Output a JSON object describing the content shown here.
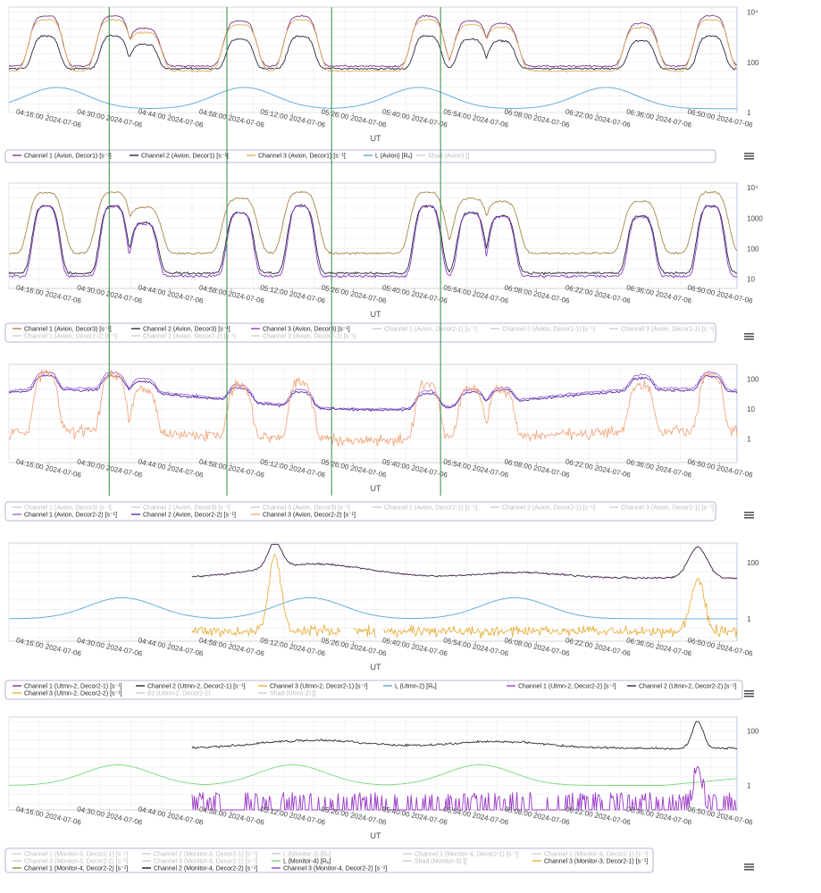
{
  "x_tick_labels": [
    "04:16:00 2024-07-06",
    "04:30:00 2024-07-06",
    "04:44:00 2024-07-06",
    "04:58:00 2024-07-06",
    "05:12:00 2024-07-06",
    "05:26:00 2024-07-06",
    "05:40:00 2024-07-06",
    "05:54:00 2024-07-06",
    "06:08:00 2024-07-06",
    "06:22:00 2024-07-06",
    "06:36:00 2024-07-06",
    "06:50:00 2024-07-06"
  ],
  "x_axis_label": "UT",
  "menu_icon": "hamburger-menu-icon",
  "chart_data": [
    {
      "type": "line",
      "x_range": [
        "2024-07-06 04:07",
        "2024-07-06 06:54"
      ],
      "x_unit": "minutes",
      "y_scale": "log",
      "yticks": [
        "1",
        "100",
        "10⁴"
      ],
      "series": [
        {
          "name": "Channel 1 (Avion, Decor1) [s⁻¹]",
          "visible": true,
          "color": "#7b3a84"
        },
        {
          "name": "Channel 2 (Avion, Decor1) [s⁻¹]",
          "visible": true,
          "color": "#2b2742"
        },
        {
          "name": "Channel 3 (Avion, Decor1) [s⁻¹]",
          "visible": true,
          "color": "#e0b060"
        },
        {
          "name": "L (Avion) [Rₑ]",
          "visible": true,
          "color": "#5aa5d8"
        },
        {
          "name": "Shad (Avion) []",
          "visible": false,
          "color": "#cccccc"
        }
      ],
      "markers": [
        "04:30",
        "04:57",
        "05:21",
        "05:46"
      ]
    },
    {
      "type": "line",
      "x_range": [
        "2024-07-06 04:07",
        "2024-07-06 06:54"
      ],
      "y_scale": "log",
      "yticks": [
        "10",
        "100",
        "1000",
        "10⁴"
      ],
      "series": [
        {
          "name": "Channel 1 (Avion, Decor3) [s⁻¹]",
          "visible": true,
          "color": "#a8864a"
        },
        {
          "name": "Channel 2 (Avion, Decor3) [s⁻¹]",
          "visible": true,
          "color": "#2a2a3a"
        },
        {
          "name": "Channel 3 (Avion, Decor3) [s⁻¹]",
          "visible": true,
          "color": "#8a3cc8"
        },
        {
          "name": "Channel 1 (Avion, Decor2-1) [s⁻¹]",
          "visible": false,
          "color": "#cccccc"
        },
        {
          "name": "Channel 2 (Avion, Decor2-1) [s⁻¹]",
          "visible": false,
          "color": "#cccccc"
        },
        {
          "name": "Channel 3 (Avion, Decor2-1) [s⁻¹]",
          "visible": false,
          "color": "#cccccc"
        },
        {
          "name": "Channel 1 (Avion, Decor2-2) [s⁻¹]",
          "visible": false,
          "color": "#cccccc"
        },
        {
          "name": "Channel 2 (Avion, Decor2-2) [s⁻¹]",
          "visible": false,
          "color": "#cccccc"
        },
        {
          "name": "Channel 3 (Avion, Decor2-2) [s⁻¹]",
          "visible": false,
          "color": "#cccccc"
        }
      ],
      "markers": [
        "04:30",
        "04:57",
        "05:21",
        "05:46"
      ]
    },
    {
      "type": "line",
      "x_range": [
        "2024-07-06 04:07",
        "2024-07-06 06:54"
      ],
      "y_scale": "log",
      "yticks": [
        "1",
        "10",
        "100"
      ],
      "series": [
        {
          "name": "Channel 1 (Avion, Decor3) [s⁻¹]",
          "visible": false,
          "color": "#cccccc"
        },
        {
          "name": "Channel 2 (Avion, Decor3) [s⁻¹]",
          "visible": false,
          "color": "#cccccc"
        },
        {
          "name": "Channel 3 (Avion, Decor3) [s⁻¹]",
          "visible": false,
          "color": "#cccccc"
        },
        {
          "name": "Channel 1 (Avion, Decor2-1) [s⁻¹]",
          "visible": false,
          "color": "#cccccc"
        },
        {
          "name": "Channel 2 (Avion, Decor2-1) [s⁻¹]",
          "visible": false,
          "color": "#cccccc"
        },
        {
          "name": "Channel 3 (Avion, Decor2-1) [s⁻¹]",
          "visible": false,
          "color": "#cccccc"
        },
        {
          "name": "Channel 1 (Avion, Decor2-2) [s⁻¹]",
          "visible": true,
          "color": "#a070d0"
        },
        {
          "name": "Channel 2 (Avion, Decor2-2) [s⁻¹]",
          "visible": true,
          "color": "#5a2aa8"
        },
        {
          "name": "Channel 3 (Avion, Decor2-2) [s⁻¹]",
          "visible": true,
          "color": "#f0a880"
        }
      ],
      "markers": [
        "04:30",
        "04:57",
        "05:21",
        "05:46"
      ]
    },
    {
      "type": "line",
      "x_range": [
        "2024-07-06 04:07",
        "2024-07-06 06:54"
      ],
      "y_scale": "log",
      "yticks": [
        "1",
        "100"
      ],
      "series": [
        {
          "name": "Channel 1 (Utmn-2, Decor2-1) [s⁻¹]",
          "visible": true,
          "color": "#7b3a84"
        },
        {
          "name": "Channel 2 (Utmn-2, Decor2-1) [s⁻¹]",
          "visible": true,
          "color": "#2b2742"
        },
        {
          "name": "Channel 3 (Utmn-2, Decor2-1) [s⁻¹]",
          "visible": true,
          "color": "#e8b040"
        },
        {
          "name": "L (Utmn-2) [Rₑ]",
          "visible": true,
          "color": "#5aa5d8"
        },
        {
          "name": "Channel 1 (Utmn-2, Decor2-2) [s⁻¹]",
          "visible": true,
          "color": "#9a48c8"
        },
        {
          "name": "Channel 2 (Utmn-2, Decor2-2) [s⁻¹]",
          "visible": true,
          "color": "#3a2040"
        },
        {
          "name": "Channel 3 (Utmn-2, Decor2-2) [s⁻¹]",
          "visible": true,
          "color": "#e8b040"
        },
        {
          "name": "Bz (Utmn-2, Decor2-2)",
          "visible": false,
          "color": "#cccccc"
        },
        {
          "name": "Shad (Utmn-2) []",
          "visible": false,
          "color": "#cccccc"
        }
      ]
    },
    {
      "type": "line",
      "x_range": [
        "2024-07-06 04:07",
        "2024-07-06 06:54"
      ],
      "y_scale": "log",
      "yticks": [
        "1",
        "100"
      ],
      "series": [
        {
          "name": "Channel 1 (Monitor-3, Decor2-1) [s⁻¹]",
          "visible": false,
          "color": "#cccccc"
        },
        {
          "name": "Channel 2 (Monitor-3, Decor2-1) [s⁻¹]",
          "visible": false,
          "color": "#cccccc"
        },
        {
          "name": "L (Monitor-3) [Rₑ]",
          "visible": false,
          "color": "#cccccc"
        },
        {
          "name": "Channel 1 (Monitor-4, Decor2-1) [s⁻¹]",
          "visible": false,
          "color": "#cccccc"
        },
        {
          "name": "Channel 2 (Monitor-4, Decor2-1) [s⁻¹]",
          "visible": false,
          "color": "#cccccc"
        },
        {
          "name": "Channel 3 (Monitor-3, Decor2-2) [s⁻¹]",
          "visible": false,
          "color": "#cccccc"
        },
        {
          "name": "Channel 3 (Monitor-4, Decor2-1) [s⁻¹]",
          "visible": false,
          "color": "#cccccc"
        },
        {
          "name": "L (Monitor-4) [Rₑ]",
          "visible": true,
          "color": "#78d878"
        },
        {
          "name": "Shad (Monitor-3) []",
          "visible": false,
          "color": "#cccccc"
        },
        {
          "name": "Channel 3 (Monitor-3, Decor2-1) [s⁻¹]",
          "visible": true,
          "color": "#e8b040"
        },
        {
          "name": "Channel 1 (Monitor-4, Decor2-2) [s⁻¹]",
          "visible": true,
          "color": "#8a8a40"
        },
        {
          "name": "Channel 2 (Monitor-4, Decor2-2) [s⁻¹]",
          "visible": true,
          "color": "#1a1a1a"
        },
        {
          "name": "Channel 3 (Monitor-4, Decor2-2) [s⁻¹]",
          "visible": true,
          "color": "#9a38c8"
        }
      ]
    }
  ]
}
